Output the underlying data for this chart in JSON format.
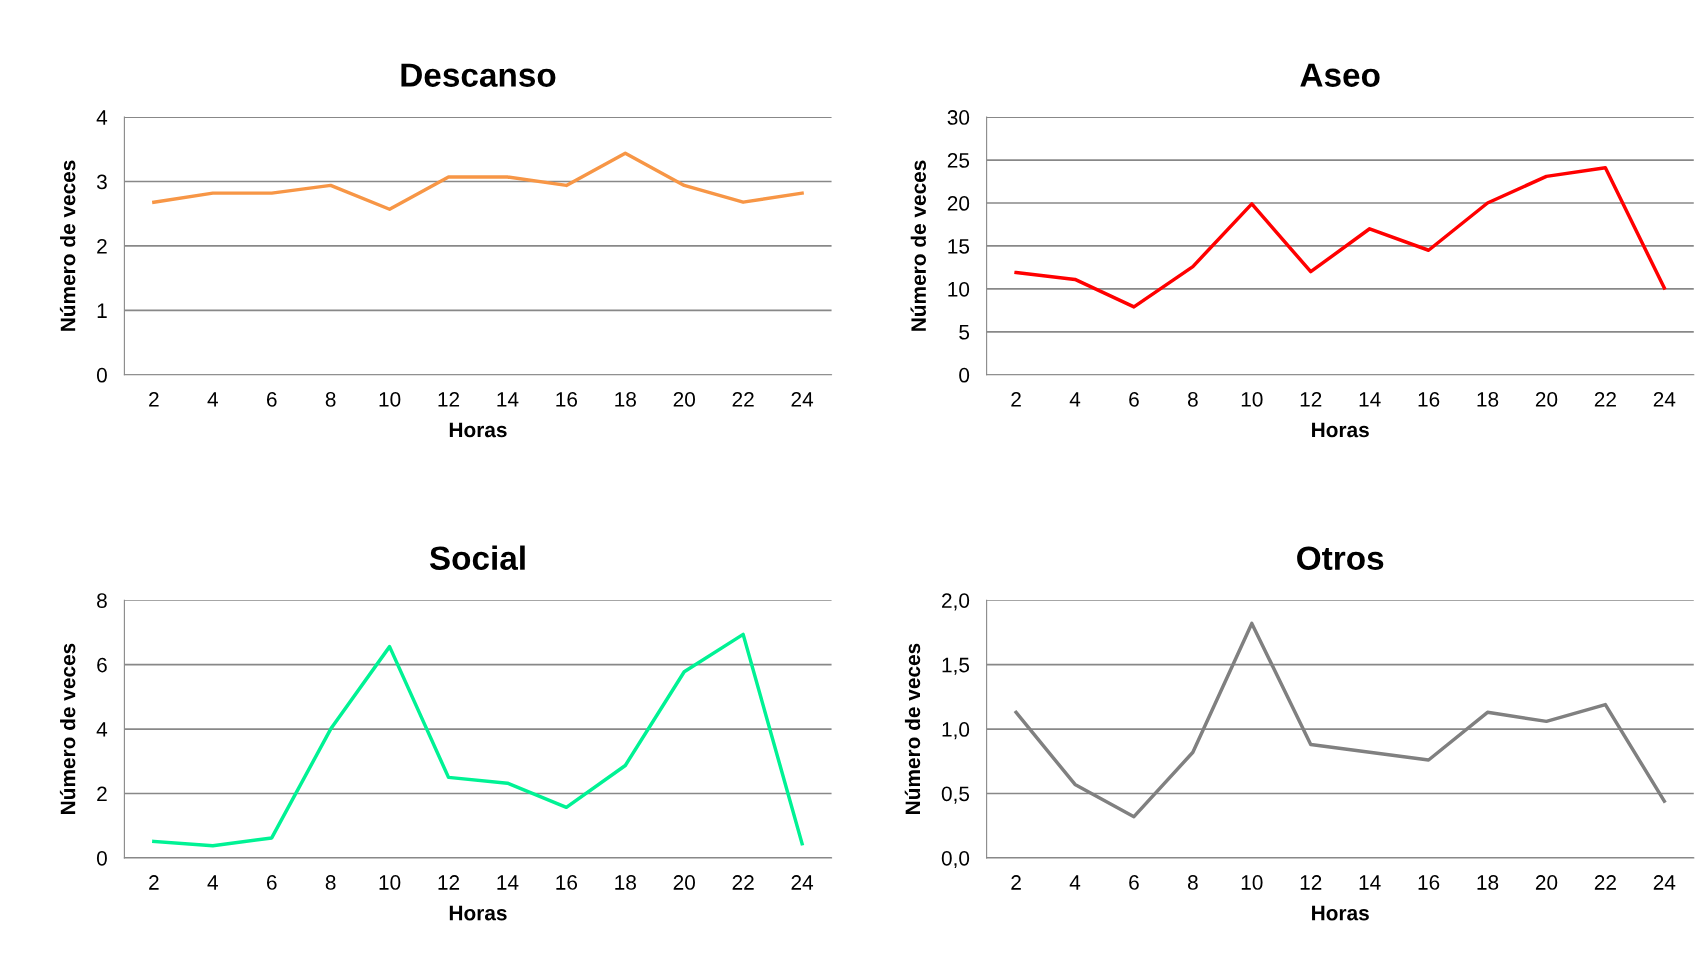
{
  "chart_data": [
    {
      "type": "line",
      "title": "Descanso",
      "xlabel": "Horas",
      "ylabel": "Número de veces",
      "categories": [
        "2",
        "4",
        "6",
        "8",
        "10",
        "12",
        "14",
        "16",
        "18",
        "20",
        "22",
        "24"
      ],
      "series": [
        {
          "color": "#f79646",
          "values": [
            2.68,
            2.82,
            2.82,
            2.94,
            2.57,
            3.07,
            3.07,
            2.94,
            3.44,
            2.94,
            2.68,
            2.82
          ]
        }
      ],
      "ylim": [
        0,
        4
      ],
      "yticks": [
        0,
        1,
        2,
        3,
        4
      ],
      "grid": "y",
      "marker": "none",
      "line_style": "solid"
    },
    {
      "type": "line",
      "title": "Aseo",
      "xlabel": "Horas",
      "ylabel": "Número de veces",
      "categories": [
        "2",
        "4",
        "6",
        "8",
        "10",
        "12",
        "14",
        "16",
        "18",
        "20",
        "22",
        "24"
      ],
      "series": [
        {
          "color": "#ff0000",
          "values": [
            11.9,
            11.1,
            7.9,
            12.6,
            19.9,
            12.0,
            17.0,
            14.5,
            20.0,
            23.1,
            24.1,
            10.1
          ]
        }
      ],
      "ylim": [
        0,
        30
      ],
      "yticks": [
        0,
        5,
        10,
        15,
        20,
        25,
        30
      ],
      "grid": "y",
      "marker": "none",
      "line_style": "solid"
    },
    {
      "type": "line",
      "title": "Social",
      "xlabel": "Horas",
      "ylabel": "Número de veces",
      "categories": [
        "2",
        "4",
        "6",
        "8",
        "10",
        "12",
        "14",
        "16",
        "18",
        "20",
        "22",
        "24"
      ],
      "series": [
        {
          "color": "#00f294",
          "values": [
            0.51,
            0.38,
            0.62,
            4.0,
            6.56,
            2.5,
            2.32,
            1.57,
            2.87,
            5.78,
            6.94,
            0.44
          ]
        }
      ],
      "ylim": [
        0,
        8
      ],
      "yticks": [
        0,
        2,
        4,
        6,
        8
      ],
      "grid": "y",
      "marker": "none",
      "line_style": "solid"
    },
    {
      "type": "line",
      "title": "Otros",
      "xlabel": "Horas",
      "ylabel": "Número de veces",
      "categories": [
        "2",
        "4",
        "6",
        "8",
        "10",
        "12",
        "14",
        "16",
        "18",
        "20",
        "22",
        "24"
      ],
      "series": [
        {
          "color": "#808080",
          "values": [
            1.13,
            0.57,
            0.32,
            0.82,
            1.82,
            0.88,
            0.82,
            0.76,
            1.13,
            1.06,
            1.19,
            0.44
          ]
        }
      ],
      "ylim": [
        0,
        2
      ],
      "yticks": [
        {
          "value": 0,
          "label": "0,0"
        },
        {
          "value": 0.5,
          "label": "0,5"
        },
        {
          "value": 1,
          "label": "1,0"
        },
        {
          "value": 1.5,
          "label": "1,5"
        },
        {
          "value": 2,
          "label": "2,0"
        }
      ],
      "grid": "y",
      "marker": "none",
      "line_style": "solid"
    }
  ]
}
